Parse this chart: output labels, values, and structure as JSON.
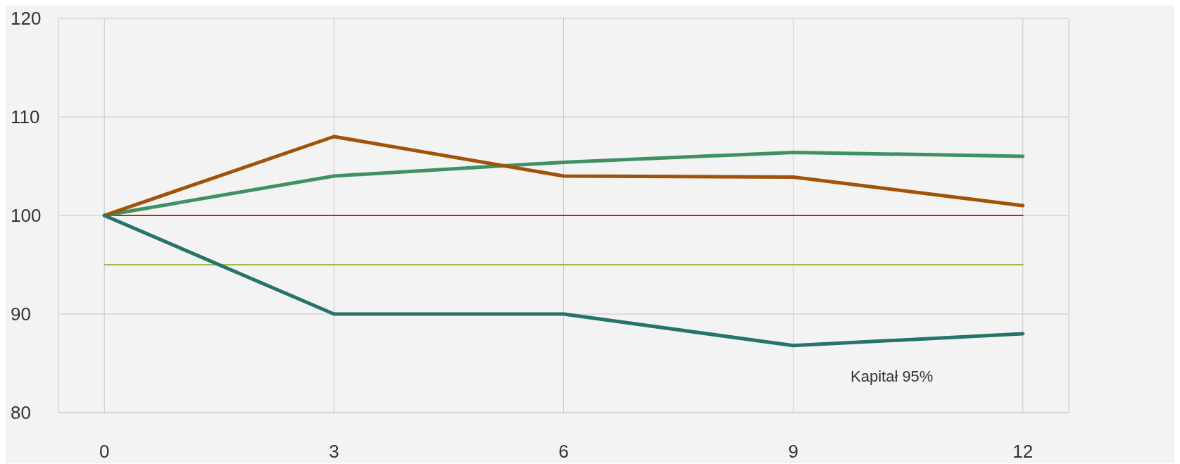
{
  "chart_data": {
    "type": "line",
    "x": [
      0,
      3,
      6,
      9,
      12
    ],
    "series": [
      {
        "color": "#e3120b",
        "values": [
          100,
          100,
          100,
          100,
          100
        ]
      },
      {
        "color": "#9bbb4f",
        "values": [
          95,
          95,
          95,
          95,
          95
        ]
      },
      {
        "color": "#3f9163",
        "values": [
          100,
          104,
          105.4,
          106.4,
          106
        ]
      },
      {
        "color": "#a0520a",
        "values": [
          100,
          108,
          104,
          103.9,
          101
        ]
      },
      {
        "color": "#26736a",
        "values": [
          100,
          90,
          90,
          86.8,
          88
        ]
      }
    ],
    "xlim": [
      -0.6,
      12.6
    ],
    "xticks": [
      0,
      3,
      6,
      9,
      12
    ],
    "ylim": [
      80,
      120
    ],
    "yticks": [
      80,
      90,
      100,
      110,
      120
    ],
    "grid": true,
    "marker": "none",
    "line_style": "solid",
    "annotations": [
      "Kapitał 95%"
    ]
  }
}
